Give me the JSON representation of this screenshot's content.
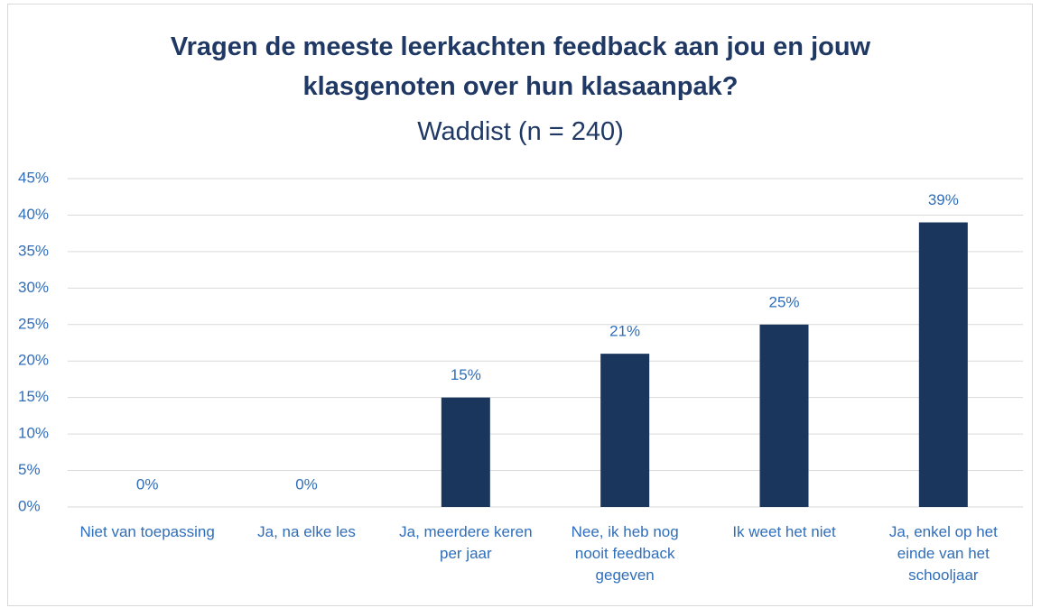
{
  "chart_data": {
    "type": "bar",
    "title": "Vragen de meeste leerkachten feedback aan jou en jouw klasgenoten over hun klasaanpak?",
    "subtitle": "Waddist (n = 240)",
    "categories": [
      "Niet van toepassing",
      "Ja, na elke les",
      "Ja, meerdere keren per jaar",
      "Nee, ik heb nog nooit feedback gegeven",
      "Ik weet het niet",
      "Ja, enkel op het einde van het schooljaar"
    ],
    "values": [
      0,
      0,
      15,
      21,
      25,
      39
    ],
    "value_labels": [
      "0%",
      "0%",
      "15%",
      "21%",
      "25%",
      "39%"
    ],
    "color": "#1b365d",
    "ylim": [
      0,
      45
    ],
    "yticks": [
      {
        "value": 0,
        "label": "0%"
      },
      {
        "value": 5,
        "label": "5%"
      },
      {
        "value": 10,
        "label": "10%"
      },
      {
        "value": 15,
        "label": "15%"
      },
      {
        "value": 20,
        "label": "20%"
      },
      {
        "value": 25,
        "label": "25%"
      },
      {
        "value": 30,
        "label": "30%"
      },
      {
        "value": 35,
        "label": "35%"
      },
      {
        "value": 40,
        "label": "40%"
      },
      {
        "value": 45,
        "label": "45%"
      }
    ],
    "grid": true
  }
}
